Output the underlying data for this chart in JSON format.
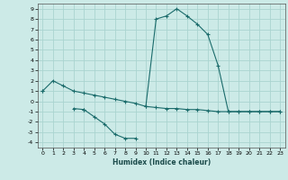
{
  "x": [
    0,
    1,
    2,
    3,
    4,
    5,
    6,
    7,
    8,
    9,
    10,
    11,
    12,
    13,
    14,
    15,
    16,
    17,
    18,
    19,
    20,
    21,
    22,
    23
  ],
  "series1": [
    1.0,
    2.0,
    1.5,
    1.0,
    0.8,
    0.6,
    0.4,
    0.2,
    0.0,
    -0.2,
    -0.5,
    8.0,
    8.3,
    9.0,
    8.3,
    7.5,
    6.5,
    3.5,
    -1.0,
    -1.0,
    -1.0,
    -1.0,
    -1.0,
    -1.0
  ],
  "series2": [
    1.0,
    null,
    null,
    -0.7,
    -0.8,
    null,
    null,
    null,
    null,
    null,
    -0.5,
    -0.6,
    -0.7,
    -0.7,
    -0.8,
    -0.8,
    -0.9,
    -1.0,
    -1.0,
    -1.0,
    -1.0,
    -1.0,
    -1.0,
    -1.0
  ],
  "series3": [
    null,
    null,
    null,
    null,
    -0.8,
    -1.5,
    -2.2,
    -3.2,
    -3.6,
    -3.6,
    null,
    null,
    null,
    null,
    null,
    null,
    null,
    null,
    null,
    null,
    null,
    null,
    null,
    null
  ],
  "bg_color": "#cceae7",
  "grid_color": "#aad4d0",
  "line_color": "#1a6b6b",
  "xlabel": "Humidex (Indice chaleur)",
  "ylim": [
    -4.5,
    9.5
  ],
  "xlim": [
    -0.5,
    23.5
  ],
  "yticks": [
    -4,
    -3,
    -2,
    -1,
    0,
    1,
    2,
    3,
    4,
    5,
    6,
    7,
    8,
    9
  ],
  "xticks": [
    0,
    1,
    2,
    3,
    4,
    5,
    6,
    7,
    8,
    9,
    10,
    11,
    12,
    13,
    14,
    15,
    16,
    17,
    18,
    19,
    20,
    21,
    22,
    23
  ],
  "figsize": [
    3.2,
    2.0
  ],
  "dpi": 100
}
